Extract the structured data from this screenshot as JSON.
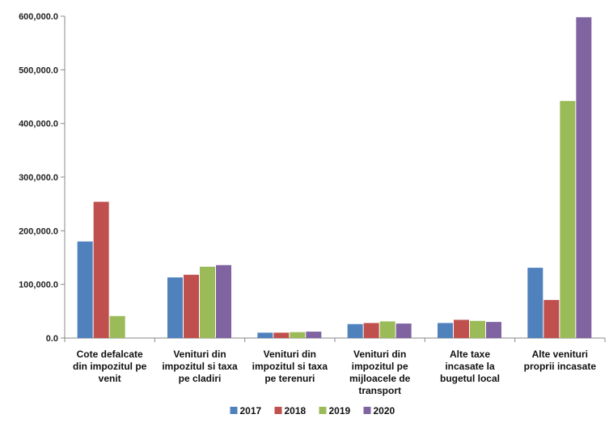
{
  "chart_data": {
    "type": "bar",
    "categories": [
      [
        "Cote defalcate",
        "din impozitul pe",
        "venit"
      ],
      [
        "Venituri din",
        "impozitul si taxa",
        "pe cladiri"
      ],
      [
        "Venituri din",
        "impozitul si taxa",
        "pe terenuri"
      ],
      [
        "Venituri din",
        "impozitul pe",
        "mijloacele de",
        "transport"
      ],
      [
        "Alte taxe",
        "incasate la",
        "bugetul local"
      ],
      [
        "Alte venituri",
        "proprii incasate"
      ]
    ],
    "series": [
      {
        "name": "2017",
        "color": "#4F81BD",
        "values": [
          180000,
          113000,
          10000,
          26000,
          28000,
          131000
        ]
      },
      {
        "name": "2018",
        "color": "#C0504D",
        "values": [
          254000,
          118000,
          10000,
          28000,
          34000,
          71000
        ]
      },
      {
        "name": "2019",
        "color": "#9BBB59",
        "values": [
          41000,
          133000,
          11000,
          31000,
          32000,
          442000
        ]
      },
      {
        "name": "2020",
        "color": "#8064A2",
        "values": [
          null,
          136000,
          12000,
          27000,
          30000,
          598000
        ]
      }
    ],
    "ylim": [
      0,
      600000
    ],
    "yticks": [
      0,
      100000,
      200000,
      300000,
      400000,
      500000,
      600000
    ],
    "ytick_labels": [
      "0.0",
      "100,000.0",
      "200,000.0",
      "300,000.0",
      "400,000.0",
      "500,000.0",
      "600,000.0"
    ],
    "legend_position": "bottom",
    "grid": false
  }
}
